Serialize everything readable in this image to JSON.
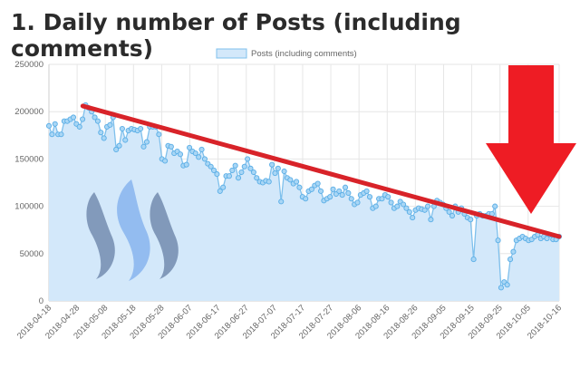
{
  "page": {
    "title": "1. Daily number of Posts (including comments)"
  },
  "colors": {
    "fill": "#d3e8fa",
    "line": "#7fc0ec",
    "point_fill": "#a9d6f5",
    "point_stroke": "#5aaee6",
    "trend": "#d82329",
    "arrow": "#ee1c24",
    "grid": "#e6e6e6"
  },
  "chart_data": {
    "type": "area",
    "legend": {
      "label": "Posts (including comments)",
      "position": "top"
    },
    "ylim": [
      0,
      250000
    ],
    "y_ticks": [
      0,
      50000,
      100000,
      150000,
      200000,
      250000
    ],
    "x_tick_labels": [
      "2018-04-18",
      "2018-04-28",
      "2018-05-08",
      "2018-05-18",
      "2018-05-28",
      "2018-06-07",
      "2018-06-17",
      "2018-06-27",
      "2018-07-07",
      "2018-07-17",
      "2018-07-27",
      "2018-08-06",
      "2018-08-16",
      "2018-08-26",
      "2018-09-05",
      "2018-09-15",
      "2018-09-25",
      "2018-10-05",
      "2018-10-16"
    ],
    "grid": true,
    "series": [
      {
        "name": "Posts (including comments)",
        "x_start": "2018-04-18",
        "x_end": "2018-10-16",
        "values": [
          185000,
          176000,
          187000,
          176000,
          176000,
          190000,
          190000,
          192000,
          194000,
          187000,
          184000,
          192000,
          207000,
          204000,
          200000,
          194000,
          190000,
          178000,
          172000,
          184000,
          186000,
          194000,
          160000,
          164000,
          182000,
          170000,
          180000,
          182000,
          181000,
          180000,
          182000,
          163000,
          168000,
          184000,
          184000,
          184000,
          176000,
          150000,
          148000,
          164000,
          163000,
          156000,
          158000,
          155000,
          143000,
          144000,
          162000,
          158000,
          156000,
          152000,
          160000,
          150000,
          145000,
          142000,
          138000,
          134000,
          116000,
          120000,
          132000,
          132000,
          138000,
          143000,
          130000,
          136000,
          142000,
          150000,
          140000,
          136000,
          130000,
          126000,
          125000,
          127000,
          126000,
          144000,
          135000,
          140000,
          105000,
          137000,
          130000,
          128000,
          124000,
          126000,
          120000,
          110000,
          108000,
          116000,
          118000,
          122000,
          124000,
          116000,
          106000,
          108000,
          110000,
          118000,
          113000,
          116000,
          112000,
          120000,
          114000,
          108000,
          102000,
          104000,
          112000,
          114000,
          116000,
          110000,
          98000,
          100000,
          108000,
          108000,
          112000,
          110000,
          104000,
          98000,
          100000,
          105000,
          102000,
          98000,
          94000,
          88000,
          96000,
          98000,
          97000,
          96000,
          100000,
          86000,
          100000,
          106000,
          104000,
          102000,
          98000,
          94000,
          90000,
          100000,
          94000,
          98000,
          92000,
          88000,
          86000,
          44000,
          90000,
          92000,
          90000,
          90000,
          92000,
          92000,
          100000,
          64000,
          14000,
          20000,
          17000,
          44000,
          52000,
          64000,
          66000,
          68000,
          66000,
          64000,
          65000,
          68000,
          70000,
          66000,
          68000,
          66000,
          70000,
          65000,
          65000,
          68000
        ]
      }
    ],
    "annotations": [
      {
        "type": "trend-line",
        "color": "red",
        "from": [
          "2018-04-30",
          206000
        ],
        "to": [
          "2018-10-16",
          68000
        ]
      },
      {
        "type": "down-arrow",
        "color": "red"
      }
    ]
  }
}
